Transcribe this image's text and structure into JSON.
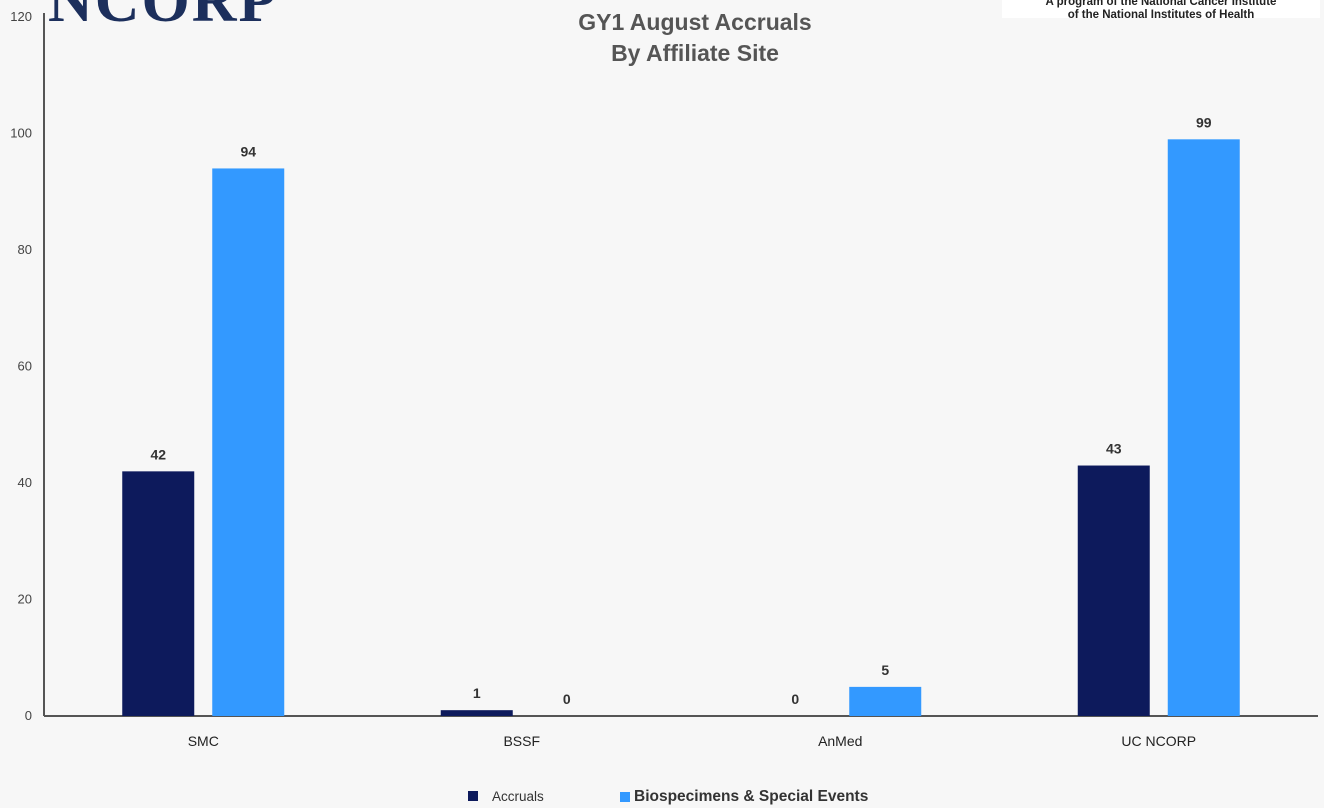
{
  "header": {
    "logo_text": "NCORP",
    "badge_lines": [
      "A program of the National Cancer Institute",
      "of the National Institutes of Health"
    ]
  },
  "colors": {
    "accruals": "#0d1a5c",
    "biospecimens": "#3399ff",
    "axis": "#555555"
  },
  "chart_data": {
    "type": "bar",
    "title": "GY1 August Accruals",
    "subtitle": "By Affiliate Site",
    "categories": [
      "SMC",
      "BSSF",
      "AnMed",
      "UC NCORP"
    ],
    "series": [
      {
        "name": "Accruals",
        "values": [
          42,
          1,
          0,
          43
        ]
      },
      {
        "name": "Biospecimens & Special Events",
        "values": [
          94,
          0,
          5,
          99
        ]
      }
    ],
    "ylim": [
      0,
      120
    ],
    "yticks": [
      0,
      20,
      40,
      60,
      80,
      100,
      120
    ],
    "xlabel": "",
    "ylabel": "",
    "grid": false,
    "legend": "bottom"
  }
}
